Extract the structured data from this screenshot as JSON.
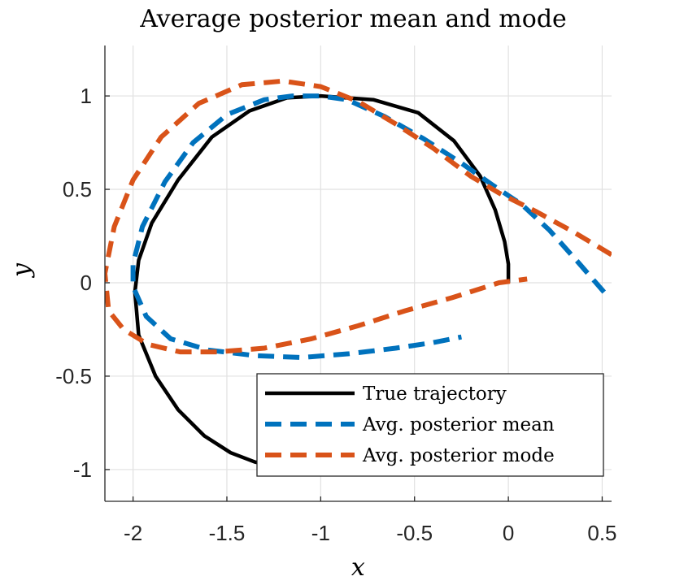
{
  "chart_data": {
    "type": "line",
    "title": "Average posterior mean and mode",
    "xlabel": "x",
    "ylabel": "y",
    "xlim": [
      -2.15,
      0.55
    ],
    "ylim": [
      -1.17,
      1.27
    ],
    "xticks": [
      -2,
      -1.5,
      -1,
      -0.5,
      0,
      0.5
    ],
    "xtick_labels": [
      "-2",
      "-1.5",
      "-1",
      "-0.5",
      "0",
      "0.5"
    ],
    "yticks": [
      -1,
      -0.5,
      0,
      0.5,
      1
    ],
    "ytick_labels": [
      "-1",
      "-0.5",
      "0",
      "0.5",
      "1"
    ],
    "grid": true,
    "legend_position": "bottom-right",
    "series": [
      {
        "name": "True trajectory",
        "color": "#000000",
        "style": "solid",
        "points": [
          [
            0.0,
            0.0
          ],
          [
            0.0,
            0.1
          ],
          [
            -0.02,
            0.22
          ],
          [
            -0.07,
            0.39
          ],
          [
            -0.15,
            0.57
          ],
          [
            -0.29,
            0.76
          ],
          [
            -0.48,
            0.91
          ],
          [
            -0.72,
            0.98
          ],
          [
            -1.0,
            1.0
          ],
          [
            -1.18,
            0.99
          ],
          [
            -1.38,
            0.92
          ],
          [
            -1.58,
            0.78
          ],
          [
            -1.76,
            0.55
          ],
          [
            -1.9,
            0.32
          ],
          [
            -1.97,
            0.12
          ],
          [
            -1.99,
            -0.05
          ],
          [
            -1.97,
            -0.28
          ],
          [
            -1.88,
            -0.5
          ],
          [
            -1.76,
            -0.68
          ],
          [
            -1.62,
            -0.82
          ],
          [
            -1.48,
            -0.91
          ],
          [
            -1.35,
            -0.96
          ],
          [
            -1.3,
            -0.97
          ]
        ]
      },
      {
        "name": "Avg. posterior mean",
        "color": "#0072bd",
        "style": "dashed",
        "points": [
          [
            0.51,
            -0.05
          ],
          [
            0.38,
            0.1
          ],
          [
            0.22,
            0.28
          ],
          [
            0.07,
            0.42
          ],
          [
            -0.08,
            0.52
          ],
          [
            -0.25,
            0.64
          ],
          [
            -0.45,
            0.77
          ],
          [
            -0.66,
            0.89
          ],
          [
            -0.86,
            0.98
          ],
          [
            -1.0,
            1.0
          ],
          [
            -1.15,
            1.0
          ],
          [
            -1.3,
            0.98
          ],
          [
            -1.5,
            0.9
          ],
          [
            -1.68,
            0.75
          ],
          [
            -1.83,
            0.54
          ],
          [
            -1.95,
            0.3
          ],
          [
            -2.0,
            0.1
          ],
          [
            -2.0,
            -0.02
          ],
          [
            -1.93,
            -0.18
          ],
          [
            -1.8,
            -0.3
          ],
          [
            -1.6,
            -0.36
          ],
          [
            -1.35,
            -0.39
          ],
          [
            -1.1,
            -0.4
          ],
          [
            -0.85,
            -0.38
          ],
          [
            -0.6,
            -0.35
          ],
          [
            -0.4,
            -0.32
          ],
          [
            -0.25,
            -0.29
          ]
        ]
      },
      {
        "name": "Avg. posterior mode",
        "color": "#d95319",
        "style": "dashed",
        "points": [
          [
            0.55,
            0.15
          ],
          [
            0.35,
            0.27
          ],
          [
            0.15,
            0.38
          ],
          [
            -0.05,
            0.48
          ],
          [
            -0.2,
            0.57
          ],
          [
            -0.4,
            0.72
          ],
          [
            -0.6,
            0.85
          ],
          [
            -0.8,
            0.97
          ],
          [
            -1.0,
            1.05
          ],
          [
            -1.2,
            1.08
          ],
          [
            -1.42,
            1.06
          ],
          [
            -1.65,
            0.96
          ],
          [
            -1.85,
            0.78
          ],
          [
            -2.0,
            0.55
          ],
          [
            -2.1,
            0.3
          ],
          [
            -2.15,
            0.05
          ],
          [
            -2.13,
            -0.15
          ],
          [
            -2.05,
            -0.25
          ],
          [
            -1.92,
            -0.33
          ],
          [
            -1.75,
            -0.37
          ],
          [
            -1.55,
            -0.37
          ],
          [
            -1.3,
            -0.35
          ],
          [
            -1.05,
            -0.3
          ],
          [
            -0.8,
            -0.23
          ],
          [
            -0.55,
            -0.15
          ],
          [
            -0.3,
            -0.08
          ],
          [
            -0.05,
            0.0
          ],
          [
            0.1,
            0.02
          ]
        ]
      }
    ]
  }
}
